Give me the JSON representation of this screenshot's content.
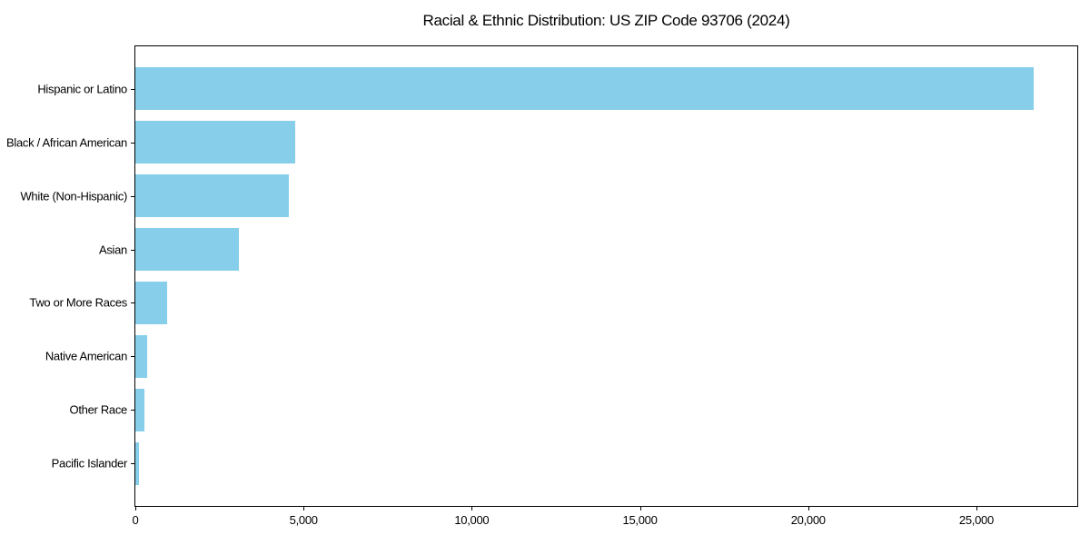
{
  "chart_data": {
    "type": "bar",
    "orientation": "horizontal",
    "title": "Racial & Ethnic Distribution: US ZIP Code 93706 (2024)",
    "categories": [
      "Hispanic or Latino",
      "Black / African American",
      "White (Non-Hispanic)",
      "Asian",
      "Two or More Races",
      "Native American",
      "Other Race",
      "Pacific Islander"
    ],
    "values": [
      26700,
      4740,
      4570,
      3070,
      950,
      340,
      260,
      120
    ],
    "xlabel": "",
    "ylabel": "",
    "xlim": [
      0,
      28000
    ],
    "x_ticks": [
      0,
      5000,
      10000,
      15000,
      20000,
      25000
    ],
    "x_tick_labels": [
      "0",
      "5,000",
      "10,000",
      "15,000",
      "20,000",
      "25,000"
    ],
    "bar_color": "#87CEEB",
    "axis_color": "#000000",
    "background_color": "#ffffff",
    "grid": false,
    "legend": null
  }
}
